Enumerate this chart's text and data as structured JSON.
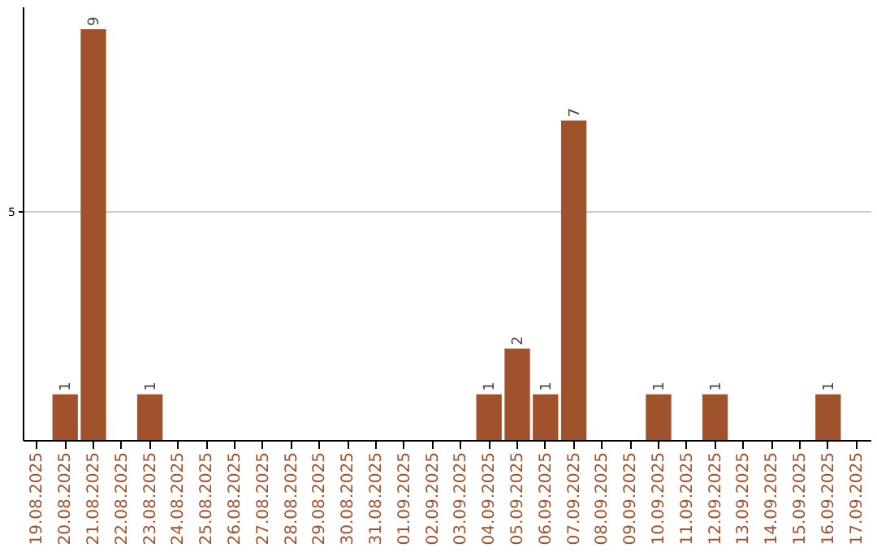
{
  "chart_data": {
    "type": "bar",
    "categories": [
      "19.08.2025",
      "20.08.2025",
      "21.08.2025",
      "22.08.2025",
      "23.08.2025",
      "24.08.2025",
      "25.08.2025",
      "26.08.2025",
      "27.08.2025",
      "28.08.2025",
      "29.08.2025",
      "30.08.2025",
      "31.08.2025",
      "01.09.2025",
      "02.09.2025",
      "03.09.2025",
      "04.09.2025",
      "05.09.2025",
      "06.09.2025",
      "07.09.2025",
      "08.09.2025",
      "09.09.2025",
      "10.09.2025",
      "11.09.2025",
      "12.09.2025",
      "13.09.2025",
      "14.09.2025",
      "15.09.2025",
      "16.09.2025",
      "17.09.2025"
    ],
    "values": [
      0,
      1,
      9,
      0,
      1,
      0,
      0,
      0,
      0,
      0,
      0,
      0,
      0,
      0,
      0,
      0,
      1,
      2,
      1,
      7,
      0,
      0,
      1,
      0,
      1,
      0,
      0,
      0,
      1,
      0
    ],
    "value_labels": [
      null,
      "1",
      "9",
      null,
      "1",
      null,
      null,
      null,
      null,
      null,
      null,
      null,
      null,
      null,
      null,
      null,
      "1",
      "2",
      "1",
      "7",
      null,
      null,
      "1",
      null,
      "1",
      null,
      null,
      null,
      "1",
      null
    ],
    "color": "#a0522d",
    "ylim": [
      0,
      9.5
    ],
    "yticks": [
      5
    ],
    "grid": "y"
  }
}
